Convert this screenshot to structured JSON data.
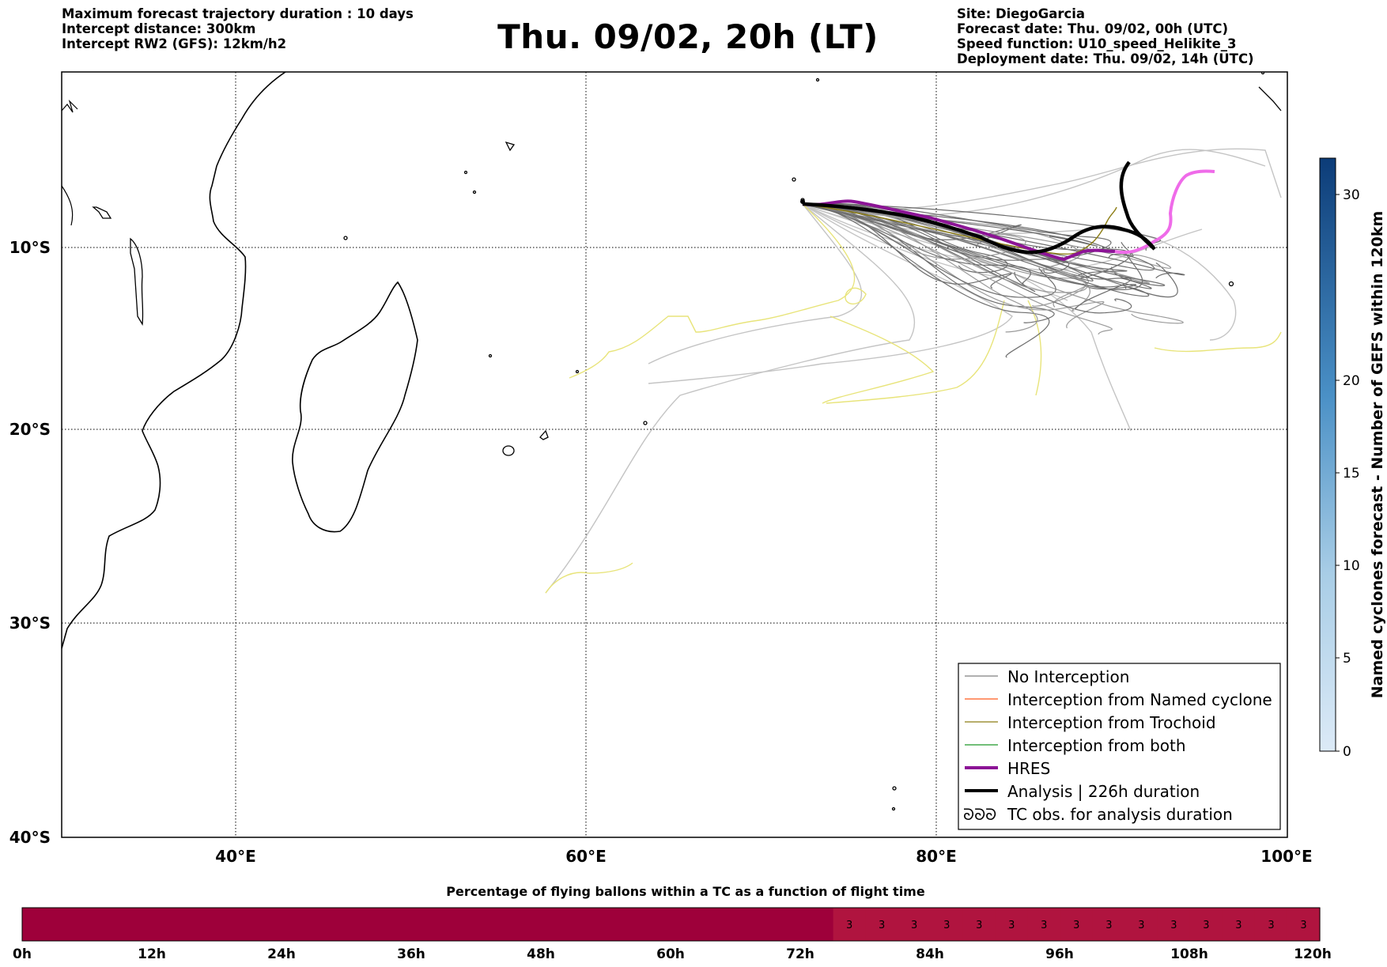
{
  "header": {
    "left": [
      "Maximum forecast trajectory duration : 10 days",
      "Intercept distance: 300km",
      "Intercept RW2 (GFS):  12km/h2"
    ],
    "title": "Thu. 09/02, 20h (LT)",
    "right": [
      "Site: DiegoGarcia",
      "Forecast date: Thu. 09/02, 00h (UTC)",
      "Speed function: U10_speed_Helikite_3",
      "Deployment date: Thu. 09/02, 14h (UTC)"
    ]
  },
  "map": {
    "lat_labels": [
      "10°S",
      "20°S",
      "30°S",
      "40°S"
    ],
    "lon_labels": [
      "40°E",
      "60°E",
      "80°E",
      "100°E"
    ],
    "extent": {
      "lon": [
        30,
        100
      ],
      "lat": [
        -40,
        -0.5
      ]
    },
    "grid": "dotted",
    "launch_site": "DiegoGarcia"
  },
  "legend": {
    "placement": "bottom-right",
    "items": [
      {
        "label": "No Interception",
        "color": "#808080",
        "style": "thin-line"
      },
      {
        "label": "Interception from Named cyclone",
        "color": "#ff5a1e",
        "style": "thin-line"
      },
      {
        "label": "Interception from Trochoid",
        "color": "#8c7d14",
        "style": "thin-line"
      },
      {
        "label": "Interception from both",
        "color": "#1e9628",
        "style": "thin-line"
      },
      {
        "label": "HRES",
        "color": "#8c1496",
        "style": "thick-line"
      },
      {
        "label": "Analysis | 226h duration",
        "color": "#000000",
        "style": "thick-line"
      },
      {
        "label": "TC obs. for analysis duration",
        "color": "#000000",
        "style": "cyclone-symbols"
      }
    ]
  },
  "colorbar": {
    "label": "Named cyclones forecast - Number of GEFS within 120km",
    "ticks": [
      "0",
      "5",
      "10",
      "15",
      "20",
      "30"
    ],
    "color_low": "#dceaf7",
    "color_high": "#0c3c78"
  },
  "bottom_bar": {
    "title": "Percentage of flying ballons within a TC as a function of flight time",
    "hour_labels": [
      "0h",
      "12h",
      "24h",
      "36h",
      "48h",
      "60h",
      "72h",
      "84h",
      "96h",
      "108h",
      "120h"
    ],
    "color_zero": "#9e003a",
    "color_three": "#b0143f",
    "cells": [
      "",
      "",
      "",
      "",
      "",
      "",
      "",
      "",
      "",
      "",
      "",
      "",
      "",
      "",
      "",
      "",
      "",
      "",
      "",
      "",
      "",
      "",
      "",
      "",
      "",
      "3",
      "3",
      "3",
      "3",
      "3",
      "3",
      "3",
      "3",
      "3",
      "3",
      "3",
      "3",
      "3",
      "3",
      "3"
    ]
  }
}
